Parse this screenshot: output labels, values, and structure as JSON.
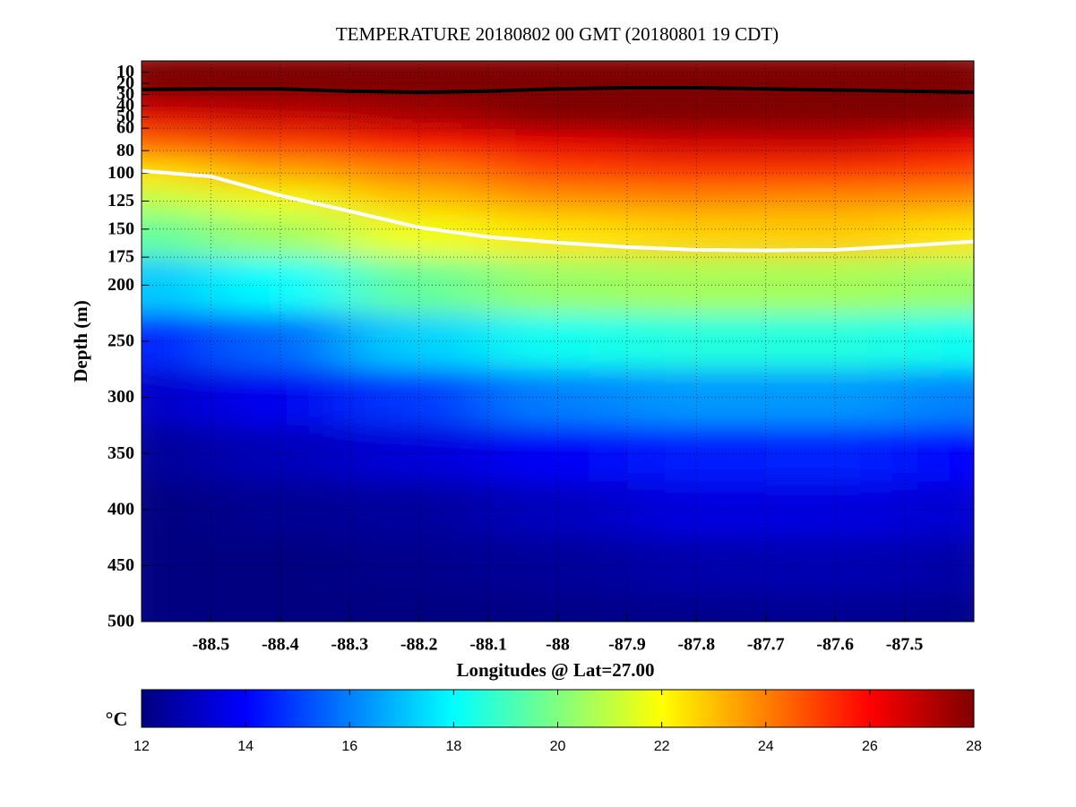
{
  "chart_data": {
    "type": "heatmap",
    "title": "TEMPERATURE 20180802 00 GMT (20180801 19 CDT)",
    "x_label": "Longitudes @ Lat=27.00",
    "y_label": "Depth (m)",
    "x": [
      -88.6,
      -88.4,
      -88.2,
      -88.0,
      -87.8,
      -87.6,
      -87.4
    ],
    "y": [
      0,
      25,
      50,
      75,
      100,
      125,
      150,
      200,
      250,
      300,
      350,
      400,
      450,
      500
    ],
    "values": [
      [
        29,
        29,
        29,
        29.2,
        29.2,
        29.3,
        29.2
      ],
      [
        28.4,
        28.4,
        28.6,
        28.8,
        28.9,
        29,
        28.9
      ],
      [
        26.4,
        26.8,
        27.3,
        28,
        28.3,
        28.4,
        28.2
      ],
      [
        24.4,
        25,
        25.7,
        26.3,
        26.7,
        26.8,
        26.3
      ],
      [
        22.4,
        23.3,
        24,
        24.9,
        25.1,
        25.1,
        24.9
      ],
      [
        20.9,
        21.8,
        22.9,
        23.6,
        23.8,
        23.7,
        23.6
      ],
      [
        19.5,
        20.5,
        21.8,
        22.4,
        22.7,
        22.8,
        22.4
      ],
      [
        17.1,
        18,
        19.6,
        20.4,
        20.6,
        20.6,
        20.4
      ],
      [
        14.4,
        15.6,
        17.3,
        18.2,
        18.5,
        18.5,
        18.2
      ],
      [
        13.1,
        13.8,
        14.9,
        16,
        16.4,
        16.4,
        16
      ],
      [
        12.4,
        12.9,
        13.4,
        13.9,
        14.4,
        14.5,
        14
      ],
      [
        12,
        12.3,
        12.5,
        13,
        13.5,
        13.5,
        13.3
      ],
      [
        11.9,
        12,
        12.2,
        12.4,
        12.7,
        12.8,
        12.6
      ],
      [
        11.8,
        11.9,
        12,
        12.1,
        12.2,
        12.3,
        12.2
      ]
    ],
    "xlim": [
      -88.6,
      -87.4
    ],
    "ylim": [
      0,
      500
    ],
    "y_reversed": true,
    "xticks": [
      -88.5,
      -88.4,
      -88.3,
      -88.2,
      -88.1,
      -88,
      -87.9,
      -87.8,
      -87.7,
      -87.6,
      -87.5
    ],
    "yticks": [
      10,
      20,
      30,
      40,
      50,
      60,
      80,
      100,
      125,
      150,
      175,
      200,
      250,
      300,
      350,
      400,
      450,
      500
    ],
    "grid": true,
    "colormap": "jet",
    "clim": [
      12,
      28
    ],
    "colorbar_label": "°C",
    "colorbar_ticks": [
      12,
      14,
      16,
      18,
      20,
      22,
      24,
      26,
      28
    ],
    "contours": {
      "x": [
        -88.6,
        -88.5,
        -88.4,
        -88.3,
        -88.2,
        -88.1,
        -88,
        -87.9,
        -87.8,
        -87.7,
        -87.6,
        -87.5,
        -87.4
      ],
      "series": [
        {
          "color": "#000000",
          "values": [
            25.5,
            25,
            25,
            27,
            28,
            27,
            25,
            24,
            24,
            25,
            26,
            27,
            28
          ]
        },
        {
          "color": "#ffffff",
          "values": [
            98,
            103,
            120,
            134,
            148.5,
            157,
            162,
            166,
            168.5,
            169,
            168.5,
            165,
            161
          ]
        }
      ]
    }
  }
}
